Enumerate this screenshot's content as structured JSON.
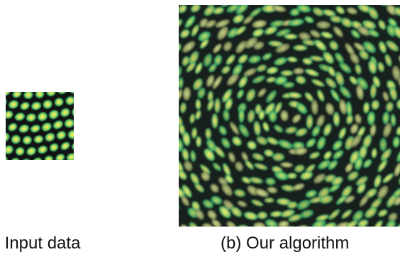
{
  "figure": {
    "panel_a": {
      "caption": ") Input data"
    },
    "panel_b": {
      "caption": "(b) Our algorithm"
    },
    "colors": {
      "background": "#111313",
      "cell_outer": "#1d9f64",
      "cell_mid": "#67c86b",
      "cell_inner": "#d7e65b",
      "cell_core": "#f4f36a",
      "cell_alt_outer": "#9ba96a",
      "cell_alt_inner": "#d9dc91"
    }
  }
}
